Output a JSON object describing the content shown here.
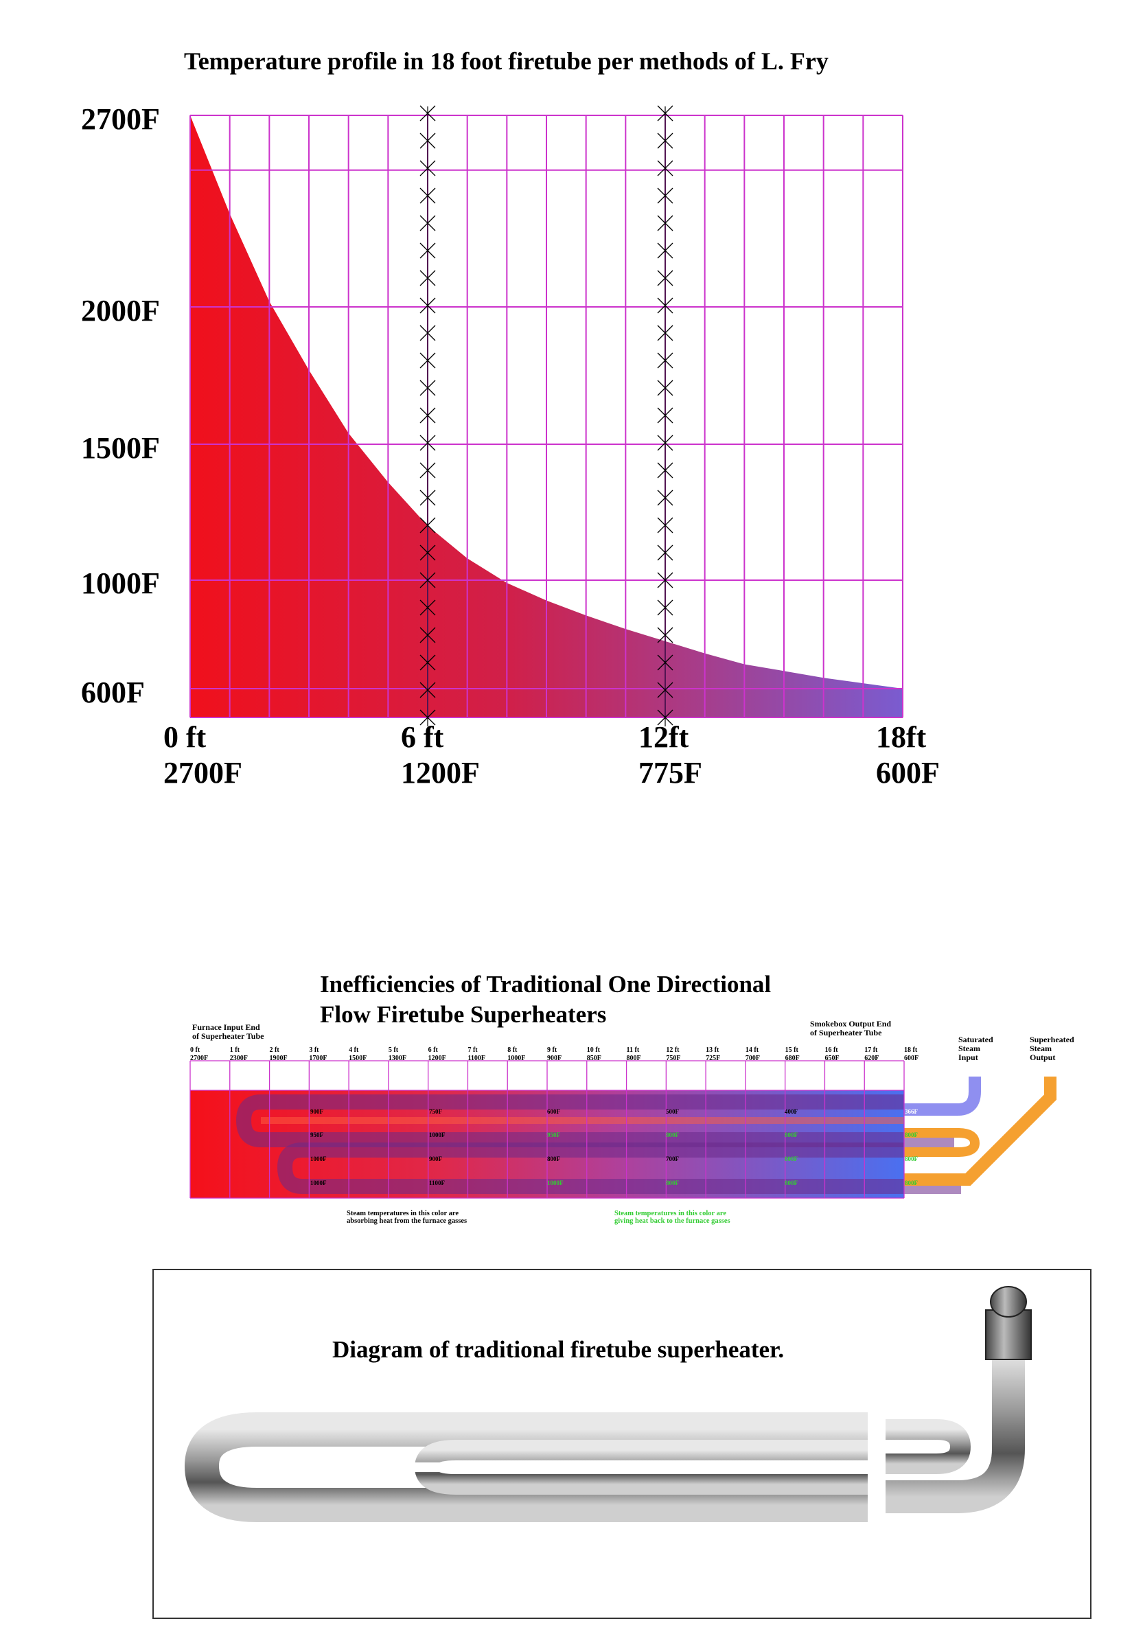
{
  "chart": {
    "title": "Temperature profile in 18 foot firetube per methods of L. Fry",
    "y_labels": [
      "2700F",
      "2000F",
      "1500F",
      "1000F",
      "600F"
    ],
    "x_labels": [
      {
        "ft": "0 ft",
        "temp": "2700F"
      },
      {
        "ft": "6 ft",
        "temp": "1200F"
      },
      {
        "ft": "12ft",
        "temp": "775F"
      },
      {
        "ft": "18ft",
        "temp": "600F"
      }
    ],
    "grid_color": "#cc33cc",
    "fill_start_color": "#f0101c",
    "fill_end_color": "#7a5cd0"
  },
  "chart_data": {
    "type": "area",
    "title": "Temperature profile in 18 foot firetube per methods of L. Fry",
    "x": [
      0,
      0.5,
      1,
      1.5,
      2,
      3,
      4,
      5,
      6,
      7,
      8,
      9,
      10,
      11,
      12,
      13,
      14,
      15,
      16,
      17,
      18
    ],
    "y": [
      2700,
      2520,
      2340,
      2180,
      2020,
      1770,
      1540,
      1360,
      1200,
      1080,
      990,
      925,
      870,
      820,
      775,
      730,
      690,
      665,
      640,
      620,
      600
    ],
    "xlabel": "",
    "ylabel": "",
    "xlim": [
      0,
      18
    ],
    "ylim": [
      500,
      2700
    ],
    "marked_positions_ft": [
      6,
      12
    ],
    "grid": true
  },
  "diagram": {
    "title_line1": "Inefficiencies of Traditional One Directional",
    "title_line2": "Flow Firetube Superheaters",
    "left_end_label": "Furnace Input End\nof Superheater Tube",
    "right_end_label": "Smokebox Output End\nof Superheater Tube",
    "saturated_label": "Saturated\nSteam\nInput",
    "superheated_label": "Superheated\nSteam\nOutput",
    "positions": [
      {
        "ft": "0 ft",
        "temp": "2700F"
      },
      {
        "ft": "1 ft",
        "temp": "2300F"
      },
      {
        "ft": "2 ft",
        "temp": "1900F"
      },
      {
        "ft": "3 ft",
        "temp": "1700F"
      },
      {
        "ft": "4 ft",
        "temp": "1500F"
      },
      {
        "ft": "5 ft",
        "temp": "1300F"
      },
      {
        "ft": "6 ft",
        "temp": "1200F"
      },
      {
        "ft": "7 ft",
        "temp": "1100F"
      },
      {
        "ft": "8 ft",
        "temp": "1000F"
      },
      {
        "ft": "9 ft",
        "temp": "900F"
      },
      {
        "ft": "10 ft",
        "temp": "850F"
      },
      {
        "ft": "11 ft",
        "temp": "800F"
      },
      {
        "ft": "12 ft",
        "temp": "750F"
      },
      {
        "ft": "13 ft",
        "temp": "725F"
      },
      {
        "ft": "14 ft",
        "temp": "700F"
      },
      {
        "ft": "15 ft",
        "temp": "680F"
      },
      {
        "ft": "16 ft",
        "temp": "650F"
      },
      {
        "ft": "17 ft",
        "temp": "620F"
      },
      {
        "ft": "18 ft",
        "temp": "600F"
      }
    ],
    "row1": [
      "900F",
      "750F",
      "600F",
      "500F",
      "400F",
      "366F"
    ],
    "row2": [
      "950F",
      "1000F",
      "950F",
      "800F",
      "800F",
      "800F"
    ],
    "row3": [
      "1000F",
      "900F",
      "800F",
      "700F",
      "800F",
      "800F"
    ],
    "row4": [
      "1000F",
      "1100F",
      "1000F",
      "800F",
      "800F",
      "800F"
    ],
    "legend_absorbing": "Steam temperatures in this color are\nabsorbing heat from the furnace gasses",
    "legend_giving": "Steam temperatures in this color are\ngiving heat back to the furnace gasses",
    "absorbing_color": "#000000",
    "giving_color": "#33cc33",
    "saturated_pipe_color": "#8f8ff0",
    "superheated_pipe_color": "#f5a030"
  },
  "photo": {
    "title": "Diagram of traditional firetube superheater."
  }
}
